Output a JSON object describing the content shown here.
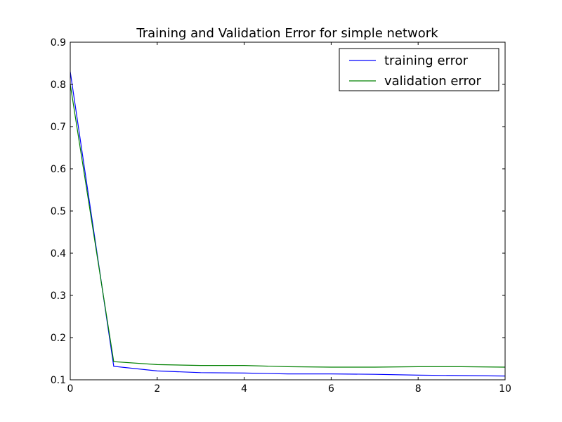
{
  "chart_data": {
    "type": "line",
    "title": "Training and Validation Error for simple network",
    "xlabel": "",
    "ylabel": "",
    "xlim": [
      0,
      10
    ],
    "ylim": [
      0.1,
      0.9
    ],
    "xticks": [
      0,
      2,
      4,
      6,
      8,
      10
    ],
    "yticks": [
      0.1,
      0.2,
      0.3,
      0.4,
      0.5,
      0.6,
      0.7,
      0.8,
      0.9
    ],
    "xtick_labels": [
      "0",
      "2",
      "4",
      "6",
      "8",
      "10"
    ],
    "ytick_labels": [
      "0.1",
      "0.2",
      "0.3",
      "0.4",
      "0.5",
      "0.6",
      "0.7",
      "0.8",
      "0.9"
    ],
    "grid": false,
    "legend_position": "top-right",
    "x": [
      0,
      1,
      2,
      3,
      4,
      5,
      6,
      7,
      8,
      9,
      10
    ],
    "series": [
      {
        "name": "training error",
        "color": "#0000ff",
        "values": [
          0.83,
          0.132,
          0.121,
          0.117,
          0.116,
          0.114,
          0.114,
          0.113,
          0.111,
          0.11,
          0.109
        ]
      },
      {
        "name": "validation error",
        "color": "#008000",
        "values": [
          0.8,
          0.143,
          0.136,
          0.134,
          0.134,
          0.131,
          0.13,
          0.13,
          0.131,
          0.131,
          0.13
        ]
      }
    ]
  }
}
